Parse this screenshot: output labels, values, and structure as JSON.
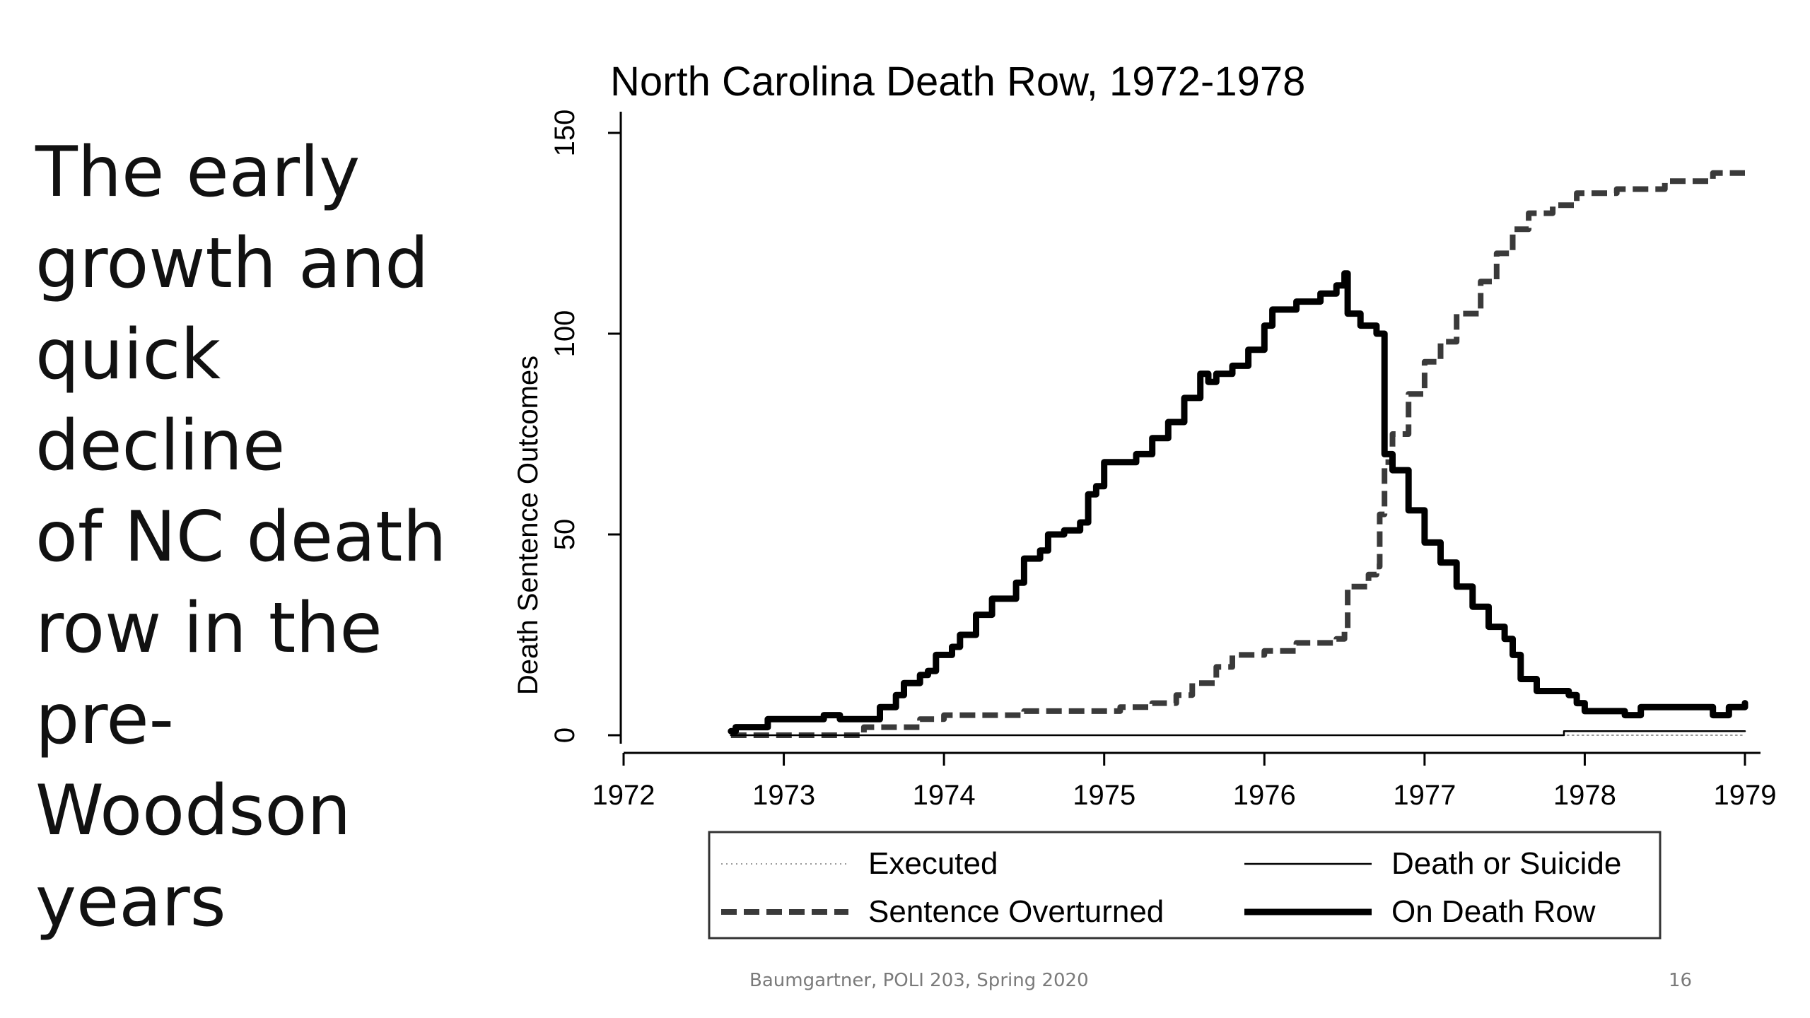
{
  "slide": {
    "heading_lines": [
      "The early",
      "growth and",
      "quick decline",
      "of NC death",
      "row in the",
      "pre-",
      "Woodson",
      "years"
    ],
    "footer": "Baumgartner, POLI 203, Spring 2020",
    "page_number": "16"
  },
  "chart_data": {
    "type": "line",
    "title": "North Carolina Death Row, 1972-1978",
    "xlabel": "",
    "ylabel": "Death Sentence Outcomes",
    "xlim": [
      1972,
      1979
    ],
    "ylim": [
      0,
      150
    ],
    "x_ticks": [
      1972,
      1973,
      1974,
      1975,
      1976,
      1977,
      1978,
      1979
    ],
    "x_tick_labels": [
      "1972",
      "1973",
      "1974",
      "1975",
      "1976",
      "1977",
      "1978",
      "1979"
    ],
    "y_ticks": [
      0,
      50,
      100,
      150
    ],
    "y_tick_labels": [
      "0",
      "50",
      "100",
      "150"
    ],
    "grid": false,
    "legend_position": "bottom",
    "series": [
      {
        "name": "Executed",
        "style": "dotted",
        "color": "#999999",
        "points": [
          [
            1972.67,
            0
          ],
          [
            1979.0,
            0
          ]
        ]
      },
      {
        "name": "Sentence Overturned",
        "style": "dashed",
        "color": "#3a3a3a",
        "points": [
          [
            1972.67,
            0
          ],
          [
            1973.3,
            0
          ],
          [
            1973.5,
            2
          ],
          [
            1973.75,
            2
          ],
          [
            1973.85,
            4
          ],
          [
            1974.0,
            5
          ],
          [
            1974.3,
            5
          ],
          [
            1974.5,
            6
          ],
          [
            1974.8,
            6
          ],
          [
            1975.0,
            6
          ],
          [
            1975.1,
            7
          ],
          [
            1975.3,
            8
          ],
          [
            1975.45,
            10
          ],
          [
            1975.55,
            13
          ],
          [
            1975.7,
            17
          ],
          [
            1975.8,
            20
          ],
          [
            1976.0,
            21
          ],
          [
            1976.2,
            23
          ],
          [
            1976.45,
            24
          ],
          [
            1976.5,
            26
          ],
          [
            1976.52,
            37
          ],
          [
            1976.65,
            40
          ],
          [
            1976.7,
            42
          ],
          [
            1976.72,
            55
          ],
          [
            1976.75,
            68
          ],
          [
            1976.8,
            75
          ],
          [
            1976.9,
            85
          ],
          [
            1977.0,
            93
          ],
          [
            1977.1,
            98
          ],
          [
            1977.2,
            105
          ],
          [
            1977.35,
            113
          ],
          [
            1977.45,
            120
          ],
          [
            1977.55,
            126
          ],
          [
            1977.65,
            130
          ],
          [
            1977.8,
            132
          ],
          [
            1977.95,
            135
          ],
          [
            1978.2,
            136
          ],
          [
            1978.5,
            138
          ],
          [
            1978.8,
            140
          ],
          [
            1979.0,
            140
          ]
        ]
      },
      {
        "name": "Death or Suicide",
        "style": "thin",
        "color": "#000000",
        "points": [
          [
            1972.67,
            0
          ],
          [
            1977.85,
            0
          ],
          [
            1977.87,
            1
          ],
          [
            1979.0,
            1
          ]
        ]
      },
      {
        "name": "On Death Row",
        "style": "thick",
        "color": "#000000",
        "points": [
          [
            1972.67,
            1
          ],
          [
            1972.7,
            2
          ],
          [
            1972.9,
            4
          ],
          [
            1973.2,
            4
          ],
          [
            1973.25,
            5
          ],
          [
            1973.35,
            4
          ],
          [
            1973.5,
            4
          ],
          [
            1973.6,
            7
          ],
          [
            1973.7,
            10
          ],
          [
            1973.75,
            13
          ],
          [
            1973.85,
            15
          ],
          [
            1973.9,
            16
          ],
          [
            1973.95,
            20
          ],
          [
            1974.05,
            22
          ],
          [
            1974.1,
            25
          ],
          [
            1974.2,
            30
          ],
          [
            1974.3,
            34
          ],
          [
            1974.4,
            34
          ],
          [
            1974.45,
            38
          ],
          [
            1974.5,
            44
          ],
          [
            1974.6,
            46
          ],
          [
            1974.65,
            50
          ],
          [
            1974.75,
            51
          ],
          [
            1974.85,
            53
          ],
          [
            1974.9,
            60
          ],
          [
            1974.95,
            62
          ],
          [
            1975.0,
            68
          ],
          [
            1975.1,
            68
          ],
          [
            1975.2,
            70
          ],
          [
            1975.3,
            74
          ],
          [
            1975.4,
            78
          ],
          [
            1975.5,
            84
          ],
          [
            1975.6,
            90
          ],
          [
            1975.65,
            88
          ],
          [
            1975.7,
            90
          ],
          [
            1975.8,
            92
          ],
          [
            1975.9,
            96
          ],
          [
            1976.0,
            102
          ],
          [
            1976.05,
            106
          ],
          [
            1976.2,
            108
          ],
          [
            1976.35,
            110
          ],
          [
            1976.45,
            112
          ],
          [
            1976.5,
            115
          ],
          [
            1976.52,
            105
          ],
          [
            1976.6,
            102
          ],
          [
            1976.7,
            100
          ],
          [
            1976.75,
            70
          ],
          [
            1976.8,
            66
          ],
          [
            1976.9,
            56
          ],
          [
            1977.0,
            48
          ],
          [
            1977.1,
            43
          ],
          [
            1977.2,
            37
          ],
          [
            1977.3,
            32
          ],
          [
            1977.4,
            27
          ],
          [
            1977.5,
            24
          ],
          [
            1977.55,
            20
          ],
          [
            1977.6,
            14
          ],
          [
            1977.7,
            11
          ],
          [
            1977.8,
            11
          ],
          [
            1977.9,
            10
          ],
          [
            1977.95,
            8
          ],
          [
            1978.0,
            6
          ],
          [
            1978.1,
            6
          ],
          [
            1978.25,
            5
          ],
          [
            1978.35,
            7
          ],
          [
            1978.5,
            7
          ],
          [
            1978.7,
            7
          ],
          [
            1978.8,
            5
          ],
          [
            1978.9,
            7
          ],
          [
            1979.0,
            8
          ]
        ]
      }
    ]
  }
}
